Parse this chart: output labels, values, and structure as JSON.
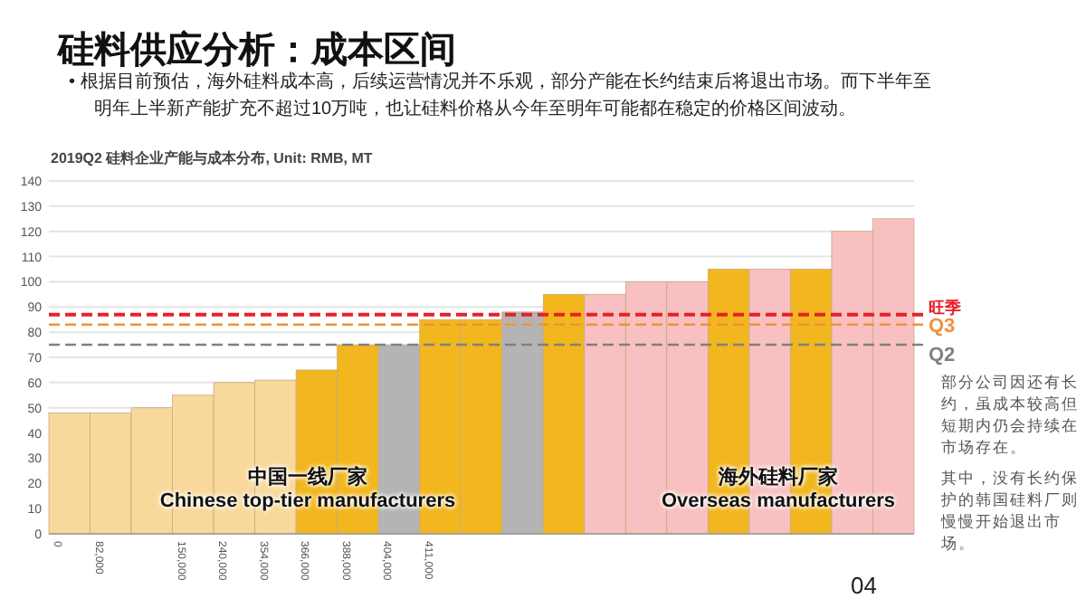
{
  "chart_data": {
    "type": "bar",
    "title": "硅料供应分析：成本区间",
    "subtitle": "• 根据目前预估，海外硅料成本高，后续运营情况并不乐观，部分产能在长约结束后将退出市场。而下半年至明年上半新产能扩充不超过10万吨，也让硅料价格从今年至明年可能都在稳定的价格区间波动。",
    "ylabel": "2019Q2 硅料企业产能与成本分布, Unit: RMB, MT",
    "categories": [
      "0",
      "82,000",
      null,
      "150,000",
      "240,000",
      "354,000",
      "366,000",
      "388,000",
      "404,000",
      "411,000",
      null,
      null,
      null,
      null,
      null,
      null,
      null,
      null,
      null,
      null,
      null
    ],
    "values": [
      48,
      48,
      50,
      55,
      60,
      61,
      65,
      75,
      75,
      85,
      85,
      88,
      95,
      95,
      100,
      100,
      105,
      105,
      105,
      120,
      125
    ],
    "colors": [
      "#f9d99b",
      "#f9d99b",
      "#f9d99b",
      "#f9d99b",
      "#f9d99b",
      "#f9d99b",
      "#f2b71e",
      "#f2b71e",
      "#b4b4b4",
      "#f2b71e",
      "#f2b71e",
      "#b4b4b4",
      "#f2b71e",
      "#f8c0c0",
      "#f8c0c0",
      "#f8c0c0",
      "#f2b71e",
      "#f8c0c0",
      "#f2b71e",
      "#f8c0c0",
      "#f8c0c0"
    ],
    "ylim": [
      0,
      140
    ],
    "yticks": [
      0,
      10,
      20,
      30,
      40,
      50,
      60,
      70,
      80,
      90,
      100,
      110,
      120,
      130,
      140
    ],
    "grid": "y",
    "ref_lines": [
      {
        "axis": "y",
        "value": 87,
        "label": "旺季",
        "color": "#e8202a",
        "line_style": "dashed"
      },
      {
        "axis": "y",
        "value": 83,
        "label": "Q3",
        "color": "#f0913a",
        "line_style": "dashed"
      },
      {
        "axis": "y",
        "value": 75,
        "label": "Q2",
        "color": "#808080",
        "line_style": "dashed"
      }
    ],
    "annotations": [
      "中国一线厂家\nChinese top-tier manufacturers",
      "海外硅料厂家\nOverseas manufacturers",
      "部分公司因还有长约，虽成本较高但短期内仍会持续在市场存在。",
      "其中，没有长约保护的韩国硅料厂则慢慢开始退出市场。",
      "04"
    ]
  }
}
